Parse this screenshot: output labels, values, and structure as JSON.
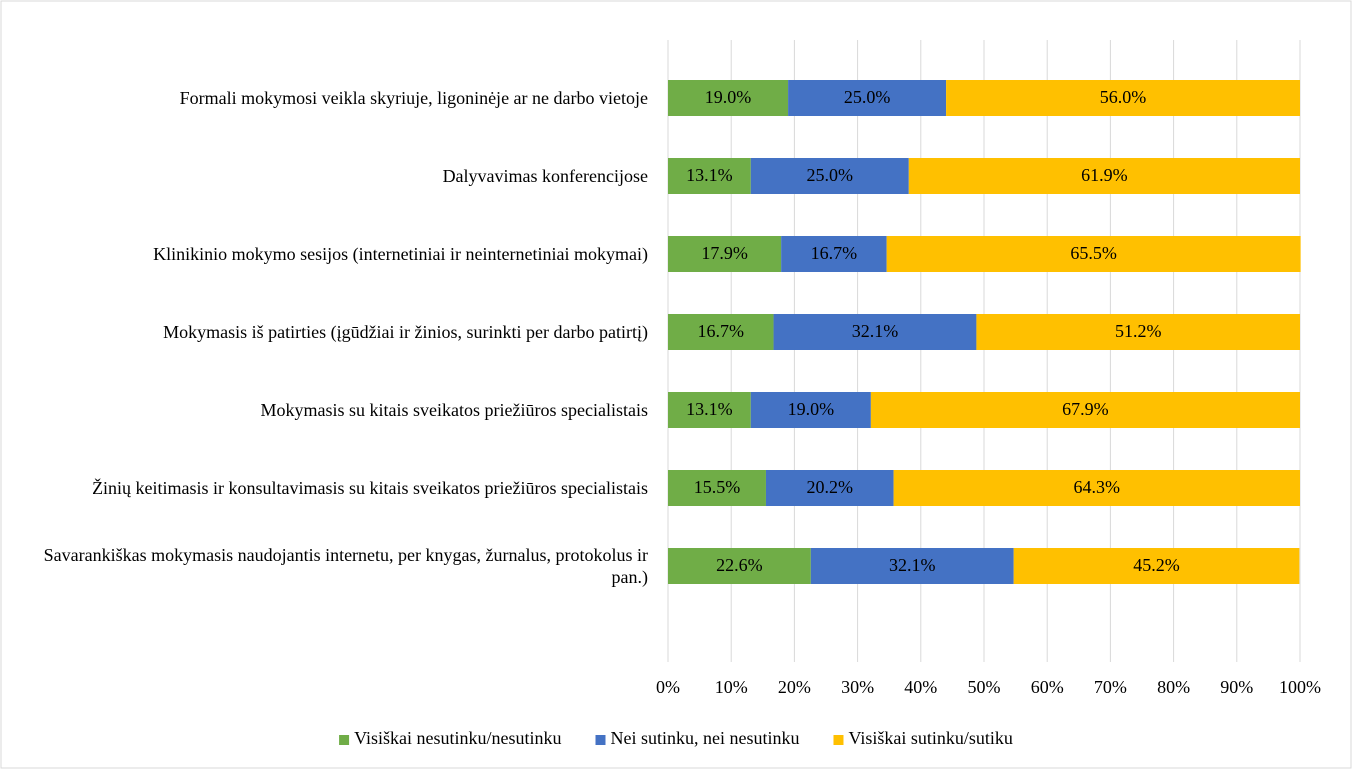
{
  "chart_data": {
    "type": "stacked-bar-horizontal",
    "categories": [
      "Formali mokymosi veikla skyriuje, ligoninėje ar ne darbo vietoje",
      "Dalyvavimas konferencijose",
      "Klinikinio mokymo sesijos (internetiniai ir neinternetiniai mokymai)",
      "Mokymasis iš patirties (įgūdžiai ir žinios, surinkti per darbo patirtį)",
      "Mokymasis su kitais sveikatos priežiūros specialistais",
      "Žinių keitimasis ir konsultavimasis su kitais sveikatos priežiūros specialistais",
      "Savarankiškas mokymasis naudojantis internetu, per knygas, žurnalus, protokolus ir pan.)"
    ],
    "series": [
      {
        "name": "Visiškai nesutinku/nesutinku",
        "color": "#70ad47",
        "values": [
          19.0,
          13.1,
          17.9,
          16.7,
          13.1,
          15.5,
          22.6
        ],
        "value_labels": [
          "19.0%",
          "13.1%",
          "17.9%",
          "16.7%",
          "13.1%",
          "15.5%",
          "22.6%"
        ]
      },
      {
        "name": "Nei sutinku, nei nesutinku",
        "color": "#4472c4",
        "values": [
          25.0,
          25.0,
          16.7,
          32.1,
          19.0,
          20.2,
          32.1
        ],
        "value_labels": [
          "25.0%",
          "25.0%",
          "16.7%",
          "32.1%",
          "19.0%",
          "20.2%",
          "32.1%"
        ]
      },
      {
        "name": "Visiškai sutinku/sutiku",
        "color": "#ffc000",
        "values": [
          56.0,
          61.9,
          65.5,
          51.2,
          67.9,
          64.3,
          45.2
        ],
        "value_labels": [
          "56.0%",
          "61.9%",
          "65.5%",
          "51.2%",
          "67.9%",
          "64.3%",
          "45.2%"
        ]
      }
    ],
    "xlim": [
      0,
      100
    ],
    "xticks": [
      {
        "value": 0,
        "label": "0%"
      },
      {
        "value": 10,
        "label": "10%"
      },
      {
        "value": 20,
        "label": "20%"
      },
      {
        "value": 30,
        "label": "30%"
      },
      {
        "value": 40,
        "label": "40%"
      },
      {
        "value": 50,
        "label": "50%"
      },
      {
        "value": 60,
        "label": "60%"
      },
      {
        "value": 70,
        "label": "70%"
      },
      {
        "value": 80,
        "label": "80%"
      },
      {
        "value": 90,
        "label": "90%"
      },
      {
        "value": 100,
        "label": "100%"
      }
    ],
    "grid": true,
    "legend": "bottom"
  }
}
